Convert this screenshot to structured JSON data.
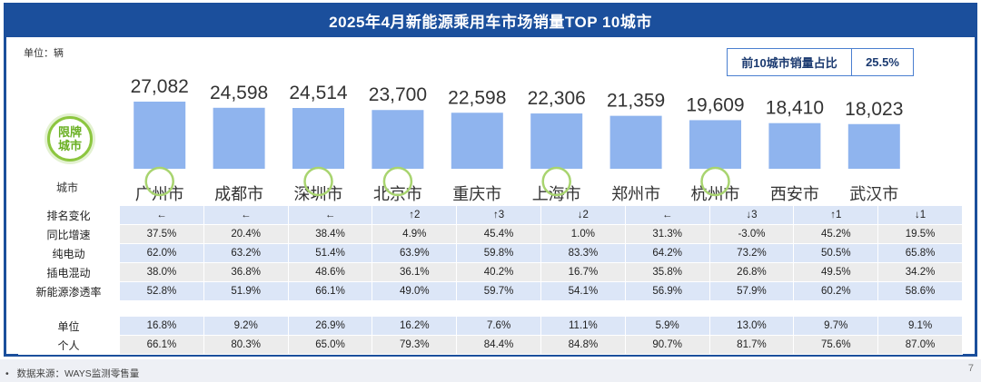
{
  "header": {
    "title": "2025年4月新能源乘用车市场销量TOP 10城市"
  },
  "unit_label": "单位：辆",
  "share_box": {
    "label": "前10城市销量占比",
    "value": "25.5%"
  },
  "badge": {
    "line1": "限牌",
    "line2": "城市"
  },
  "city_column_label": "城市",
  "chart_data": {
    "type": "bar",
    "categories": [
      "广州市",
      "成都市",
      "深圳市",
      "北京市",
      "重庆市",
      "上海市",
      "郑州市",
      "杭州市",
      "西安市",
      "武汉市"
    ],
    "values": [
      27082,
      24598,
      24514,
      23700,
      22598,
      22306,
      21359,
      19609,
      18410,
      18023
    ],
    "value_labels": [
      "27,082",
      "24,598",
      "24,514",
      "23,700",
      "22,598",
      "22,306",
      "21,359",
      "19,609",
      "18,410",
      "18,023"
    ],
    "restricted_license": [
      true,
      false,
      true,
      true,
      false,
      true,
      false,
      true,
      false,
      false
    ],
    "ylabel": "",
    "color": "#8fb4ee"
  },
  "table": {
    "rows": [
      {
        "label": "排名变化",
        "values": [
          "←",
          "←",
          "←",
          "↑2",
          "↑3",
          "↓2",
          "←",
          "↓3",
          "↑1",
          "↓1"
        ]
      },
      {
        "label": "同比增速",
        "values": [
          "37.5%",
          "20.4%",
          "38.4%",
          "4.9%",
          "45.4%",
          "1.0%",
          "31.3%",
          "-3.0%",
          "45.2%",
          "19.5%"
        ]
      },
      {
        "label": "纯电动",
        "values": [
          "62.0%",
          "63.2%",
          "51.4%",
          "63.9%",
          "59.8%",
          "83.3%",
          "64.2%",
          "73.2%",
          "50.5%",
          "65.8%"
        ]
      },
      {
        "label": "插电混动",
        "values": [
          "38.0%",
          "36.8%",
          "48.6%",
          "36.1%",
          "40.2%",
          "16.7%",
          "35.8%",
          "26.8%",
          "49.5%",
          "34.2%"
        ]
      },
      {
        "label": "新能源渗透率",
        "values": [
          "52.8%",
          "51.9%",
          "66.1%",
          "49.0%",
          "59.7%",
          "54.1%",
          "56.9%",
          "57.9%",
          "60.2%",
          "58.6%"
        ]
      }
    ],
    "rows2": [
      {
        "label": "单位",
        "values": [
          "16.8%",
          "9.2%",
          "26.9%",
          "16.2%",
          "7.6%",
          "11.1%",
          "5.9%",
          "13.0%",
          "9.7%",
          "9.1%"
        ]
      },
      {
        "label": "个人",
        "values": [
          "66.1%",
          "80.3%",
          "65.0%",
          "79.3%",
          "84.4%",
          "84.8%",
          "90.7%",
          "81.7%",
          "75.6%",
          "87.0%"
        ]
      }
    ]
  },
  "footer": {
    "source": "数据来源：WAYS监测零售量",
    "bullet": "•",
    "page": "7"
  },
  "colors": {
    "title_bg": "#1b4f9c",
    "bar": "#8fb4ee",
    "badge_green": "#8cc63f",
    "row_blue": "#dce6f7",
    "row_gray": "#ececec"
  }
}
